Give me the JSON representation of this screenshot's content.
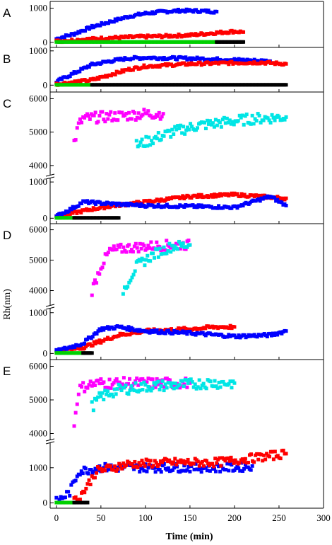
{
  "figure": {
    "y_axis_title": "Rh(nm)",
    "x_axis_title": "Time (min)",
    "x_ticks": [
      0,
      50,
      100,
      150,
      200,
      250,
      300
    ],
    "x_range": [
      -7,
      300
    ]
  },
  "chart_data": [
    {
      "panel": "A",
      "type": "scatter",
      "xlabel": "Time (min)",
      "ylabel": "Rh(nm)",
      "xlim": [
        -7,
        300
      ],
      "y_ticks": [
        0,
        1000
      ],
      "series": [
        {
          "color": "#0000ff",
          "points": [
            [
              0,
              100
            ],
            [
              20,
              250
            ],
            [
              40,
              450
            ],
            [
              60,
              600
            ],
            [
              80,
              750
            ],
            [
              100,
              850
            ],
            [
              120,
              900
            ],
            [
              140,
              930
            ],
            [
              160,
              920
            ],
            [
              180,
              900
            ]
          ]
        },
        {
          "color": "#ff0000",
          "points": [
            [
              0,
              30
            ],
            [
              30,
              80
            ],
            [
              60,
              130
            ],
            [
              90,
              160
            ],
            [
              120,
              180
            ],
            [
              150,
              210
            ],
            [
              180,
              280
            ],
            [
              200,
              320
            ],
            [
              210,
              300
            ]
          ]
        },
        {
          "color": "#00d000",
          "points": [
            [
              0,
              10
            ],
            [
              90,
              10
            ],
            [
              180,
              10
            ]
          ]
        },
        {
          "color": "#000000",
          "points": [
            [
              180,
              10
            ],
            [
              210,
              10
            ]
          ]
        }
      ]
    },
    {
      "panel": "B",
      "type": "scatter",
      "xlabel": "Time (min)",
      "ylabel": "Rh(nm)",
      "xlim": [
        -7,
        300
      ],
      "y_ticks": [
        0,
        1000
      ],
      "series": [
        {
          "color": "#0000ff",
          "points": [
            [
              0,
              100
            ],
            [
              20,
              350
            ],
            [
              40,
              600
            ],
            [
              60,
              700
            ],
            [
              80,
              780
            ],
            [
              100,
              800
            ],
            [
              150,
              780
            ],
            [
              200,
              740
            ],
            [
              240,
              700
            ]
          ]
        },
        {
          "color": "#ff0000",
          "points": [
            [
              0,
              30
            ],
            [
              40,
              150
            ],
            [
              60,
              300
            ],
            [
              80,
              450
            ],
            [
              100,
              550
            ],
            [
              150,
              620
            ],
            [
              200,
              650
            ],
            [
              230,
              660
            ],
            [
              258,
              620
            ]
          ]
        },
        {
          "color": "#00d000",
          "points": [
            [
              0,
              10
            ],
            [
              40,
              10
            ]
          ]
        },
        {
          "color": "#000000",
          "points": [
            [
              40,
              10
            ],
            [
              258,
              10
            ]
          ]
        }
      ]
    },
    {
      "panel": "C",
      "type": "scatter",
      "xlabel": "Time (min)",
      "ylabel": "Rh(nm)",
      "xlim": [
        -7,
        300
      ],
      "y_ticks": [
        0,
        1000,
        4000,
        5000,
        6000
      ],
      "broken_y_axis": [
        1300,
        3800
      ],
      "series": [
        {
          "color": "#ff00ff",
          "points": [
            [
              20,
              4700
            ],
            [
              25,
              5200
            ],
            [
              30,
              5400
            ],
            [
              50,
              5450
            ],
            [
              80,
              5500
            ],
            [
              100,
              5550
            ],
            [
              120,
              5550
            ]
          ]
        },
        {
          "color": "#00e5e5",
          "points": [
            [
              90,
              4600
            ],
            [
              110,
              4800
            ],
            [
              130,
              5000
            ],
            [
              160,
              5200
            ],
            [
              190,
              5300
            ],
            [
              220,
              5400
            ],
            [
              258,
              5450
            ]
          ]
        },
        {
          "color": "#ff0000",
          "points": [
            [
              0,
              50
            ],
            [
              20,
              150
            ],
            [
              40,
              250
            ],
            [
              60,
              330
            ],
            [
              100,
              450
            ],
            [
              150,
              600
            ],
            [
              200,
              650
            ],
            [
              258,
              550
            ]
          ]
        },
        {
          "color": "#0000ff",
          "points": [
            [
              0,
              50
            ],
            [
              20,
              300
            ],
            [
              30,
              450
            ],
            [
              60,
              400
            ],
            [
              100,
              350
            ],
            [
              150,
              330
            ],
            [
              200,
              300
            ],
            [
              240,
              600
            ],
            [
              258,
              350
            ]
          ]
        },
        {
          "color": "#00d000",
          "points": [
            [
              0,
              10
            ],
            [
              20,
              10
            ]
          ]
        },
        {
          "color": "#000000",
          "points": [
            [
              20,
              10
            ],
            [
              70,
              10
            ]
          ]
        }
      ]
    },
    {
      "panel": "D",
      "type": "scatter",
      "xlabel": "Time (min)",
      "ylabel": "Rh(nm)",
      "xlim": [
        -7,
        300
      ],
      "y_ticks": [
        0,
        1000,
        4000,
        5000,
        6000
      ],
      "broken_y_axis": [
        1300,
        3800
      ],
      "series": [
        {
          "color": "#ff00ff",
          "points": [
            [
              40,
              4000
            ],
            [
              50,
              4800
            ],
            [
              60,
              5300
            ],
            [
              80,
              5400
            ],
            [
              100,
              5450
            ],
            [
              130,
              5500
            ],
            [
              150,
              5500
            ]
          ]
        },
        {
          "color": "#00e5e5",
          "points": [
            [
              75,
              4000
            ],
            [
              90,
              4800
            ],
            [
              110,
              5200
            ],
            [
              130,
              5450
            ],
            [
              150,
              5500
            ]
          ]
        },
        {
          "color": "#ff0000",
          "points": [
            [
              0,
              50
            ],
            [
              30,
              150
            ],
            [
              50,
              300
            ],
            [
              70,
              450
            ],
            [
              100,
              550
            ],
            [
              150,
              600
            ],
            [
              180,
              650
            ],
            [
              200,
              650
            ]
          ]
        },
        {
          "color": "#0000ff",
          "points": [
            [
              0,
              50
            ],
            [
              30,
              250
            ],
            [
              50,
              600
            ],
            [
              70,
              650
            ],
            [
              100,
              550
            ],
            [
              150,
              500
            ],
            [
              200,
              420
            ],
            [
              240,
              450
            ],
            [
              258,
              550
            ]
          ]
        },
        {
          "color": "#00d000",
          "points": [
            [
              0,
              10
            ],
            [
              30,
              10
            ]
          ]
        },
        {
          "color": "#000000",
          "points": [
            [
              30,
              10
            ],
            [
              40,
              10
            ]
          ]
        }
      ]
    },
    {
      "panel": "E",
      "type": "scatter",
      "xlabel": "Time (min)",
      "ylabel": "Rh(nm)",
      "xlim": [
        -7,
        300
      ],
      "y_ticks": [
        0,
        1000,
        4000,
        5000,
        6000
      ],
      "broken_y_axis": [
        1600,
        3800
      ],
      "series": [
        {
          "color": "#ff00ff",
          "points": [
            [
              20,
              4300
            ],
            [
              25,
              5300
            ],
            [
              35,
              5450
            ],
            [
              50,
              5500
            ],
            [
              100,
              5500
            ],
            [
              150,
              5500
            ]
          ]
        },
        {
          "color": "#00e5e5",
          "points": [
            [
              40,
              4800
            ],
            [
              50,
              5100
            ],
            [
              70,
              5300
            ],
            [
              100,
              5400
            ],
            [
              140,
              5450
            ],
            [
              170,
              5500
            ],
            [
              200,
              5500
            ]
          ]
        },
        {
          "color": "#0000ff",
          "points": [
            [
              0,
              30
            ],
            [
              15,
              300
            ],
            [
              25,
              900
            ],
            [
              50,
              1000
            ],
            [
              100,
              1000
            ],
            [
              150,
              1000
            ],
            [
              200,
              1000
            ],
            [
              220,
              1050
            ]
          ]
        },
        {
          "color": "#ff0000",
          "points": [
            [
              20,
              50
            ],
            [
              30,
              300
            ],
            [
              45,
              900
            ],
            [
              80,
              1100
            ],
            [
              130,
              1150
            ],
            [
              180,
              1150
            ],
            [
              230,
              1300
            ],
            [
              258,
              1400
            ]
          ]
        },
        {
          "color": "#00d000",
          "points": [
            [
              0,
              10
            ],
            [
              20,
              10
            ]
          ]
        },
        {
          "color": "#000000",
          "points": [
            [
              20,
              10
            ],
            [
              35,
              10
            ]
          ]
        }
      ]
    }
  ]
}
